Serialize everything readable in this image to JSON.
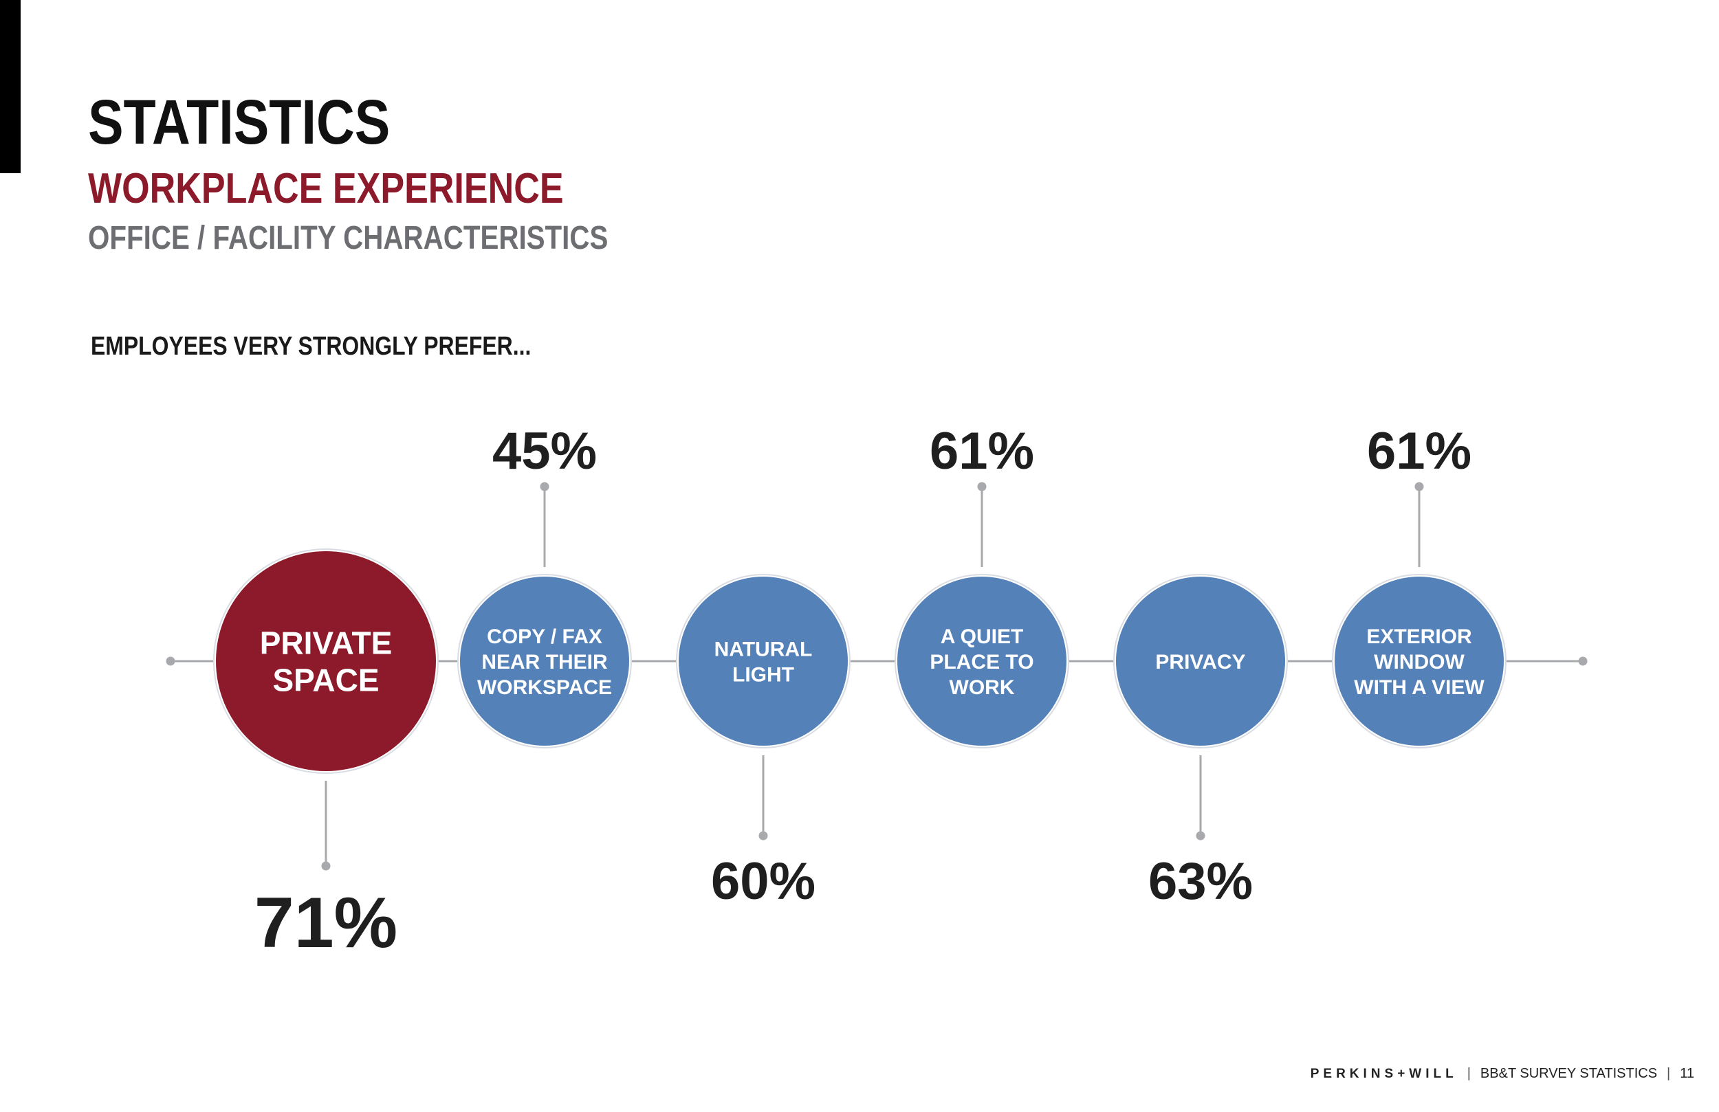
{
  "header": {
    "title": "STATISTICS",
    "subtitle": "WORKPLACE EXPERIENCE",
    "section": "OFFICE / FACILITY CHARACTERISTICS",
    "intro": "EMPLOYEES VERY STRONGLY PREFER..."
  },
  "colors": {
    "highlight": "#8c1a2a",
    "node": "#5581b9",
    "connector": "#a7a9ac",
    "text_dark": "#1a1a1a",
    "text_gray": "#6d6e71"
  },
  "items": [
    {
      "label_lines": [
        "PRIVATE",
        "SPACE"
      ],
      "value": "71%",
      "highlight": true,
      "value_position": "bottom"
    },
    {
      "label_lines": [
        "COPY / FAX",
        "NEAR THEIR",
        "WORKSPACE"
      ],
      "value": "45%",
      "highlight": false,
      "value_position": "top"
    },
    {
      "label_lines": [
        "NATURAL",
        "LIGHT"
      ],
      "value": "60%",
      "highlight": false,
      "value_position": "bottom"
    },
    {
      "label_lines": [
        "A QUIET",
        "PLACE TO",
        "WORK"
      ],
      "value": "61%",
      "highlight": false,
      "value_position": "top"
    },
    {
      "label_lines": [
        "PRIVACY"
      ],
      "value": "63%",
      "highlight": false,
      "value_position": "bottom"
    },
    {
      "label_lines": [
        "EXTERIOR",
        "WINDOW",
        "WITH A VIEW"
      ],
      "value": "61%",
      "highlight": false,
      "value_position": "top"
    }
  ],
  "footer": {
    "brand": "PERKINS+WILL",
    "report": "BB&T SURVEY STATISTICS",
    "page": "11"
  }
}
